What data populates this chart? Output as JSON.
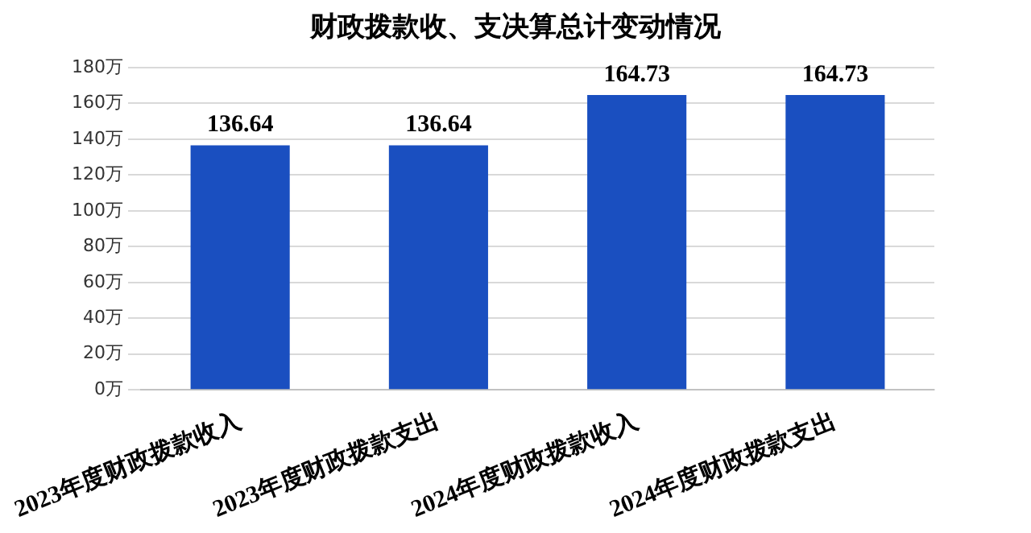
{
  "chart_data": {
    "type": "bar",
    "title": "财政拨款收、支决算总计变动情况",
    "categories": [
      "2023年度财政拨款收入",
      "2023年度财政拨款支出",
      "2024年度财政拨款收入",
      "2024年度财政拨款支出"
    ],
    "values": [
      136.64,
      136.64,
      164.73,
      164.73
    ],
    "color": "#1a4fc0",
    "ylim": [
      0,
      180
    ],
    "yticks": [
      {
        "value": 0,
        "label": "0万"
      },
      {
        "value": 20,
        "label": "20万"
      },
      {
        "value": 40,
        "label": "40万"
      },
      {
        "value": 60,
        "label": "60万"
      },
      {
        "value": 80,
        "label": "80万"
      },
      {
        "value": 100,
        "label": "100万"
      },
      {
        "value": 120,
        "label": "120万"
      },
      {
        "value": 140,
        "label": "140万"
      },
      {
        "value": 160,
        "label": "160万"
      },
      {
        "value": 180,
        "label": "180万"
      }
    ],
    "grid": "y",
    "data_labels": true
  }
}
